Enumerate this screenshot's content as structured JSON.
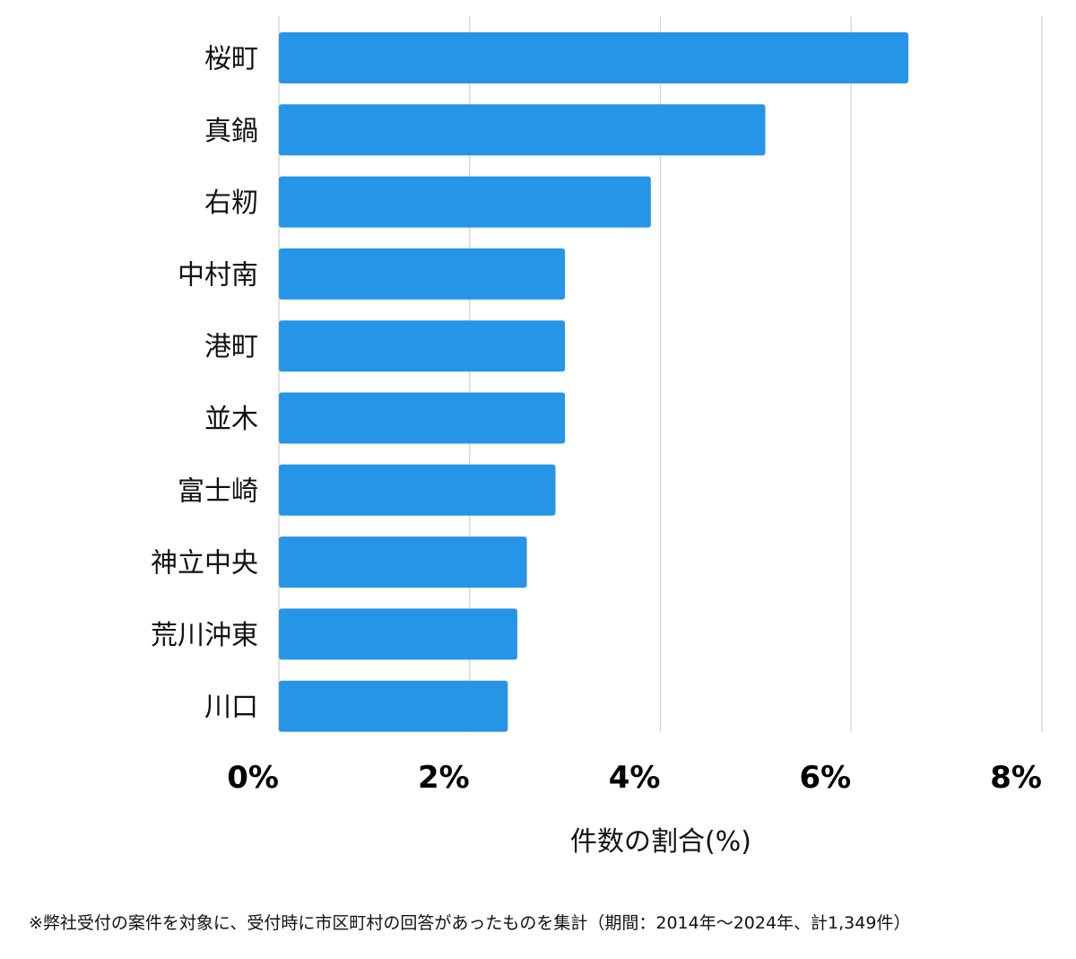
{
  "chart_data": {
    "type": "bar",
    "orientation": "horizontal",
    "categories": [
      "桜町",
      "真鍋",
      "右籾",
      "中村南",
      "港町",
      "並木",
      "富士崎",
      "神立中央",
      "荒川沖東",
      "川口"
    ],
    "values": [
      6.6,
      5.1,
      3.9,
      3.0,
      3.0,
      3.0,
      2.9,
      2.6,
      2.5,
      2.4
    ],
    "xlim": [
      0,
      8
    ],
    "xticks": [
      0,
      2,
      4,
      6,
      8
    ],
    "xtick_labels": [
      "0%",
      "2%",
      "4%",
      "6%",
      "8%"
    ],
    "xlabel": "件数の割合(%)",
    "ylabel": "",
    "title": "",
    "grid": "vertical",
    "bar_color": "#2795e6"
  },
  "footnote": "※弊社受付の案件を対象に、受付時に市区町村の回答があったものを集計（期間：2014年～2024年、計1,349件）"
}
